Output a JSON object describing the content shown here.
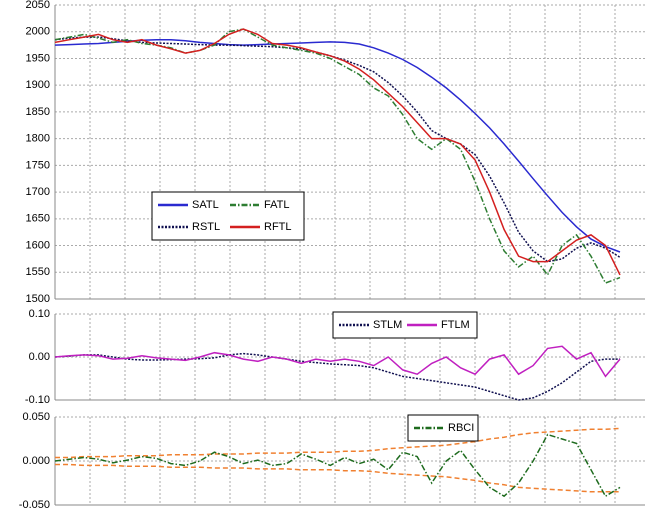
{
  "chart_data": [
    {
      "type": "line",
      "ylim": [
        1500,
        2050
      ],
      "yticks": [
        1500,
        1550,
        1600,
        1650,
        1700,
        1750,
        1800,
        1850,
        1900,
        1950,
        2000,
        2050
      ],
      "grid": true,
      "series": [
        {
          "name": "SATL",
          "color": "#2a2ad0",
          "line_style": "solid",
          "values": [
            1975,
            1976,
            1977,
            1978,
            1980,
            1982,
            1984,
            1985,
            1985,
            1983,
            1980,
            1978,
            1976,
            1975,
            1976,
            1977,
            1978,
            1979,
            1980,
            1981,
            1980,
            1977,
            1970,
            1960,
            1948,
            1933,
            1915,
            1895,
            1872,
            1847,
            1820,
            1790,
            1758,
            1725,
            1693,
            1662,
            1635,
            1612,
            1598,
            1588
          ]
        },
        {
          "name": "RSTL",
          "color": "#101050",
          "line_style": "dotted",
          "values": [
            1985,
            1988,
            1990,
            1990,
            1987,
            1983,
            1980,
            1979,
            1978,
            1977,
            1976,
            1975,
            1975,
            1974,
            1973,
            1972,
            1970,
            1968,
            1962,
            1955,
            1947,
            1937,
            1925,
            1905,
            1880,
            1850,
            1815,
            1800,
            1790,
            1770,
            1730,
            1680,
            1625,
            1590,
            1570,
            1575,
            1595,
            1605,
            1595,
            1578
          ]
        },
        {
          "name": "FATL",
          "color": "#2e7d32",
          "line_style": "dashdot",
          "values": [
            1985,
            1990,
            1995,
            1988,
            1980,
            1985,
            1978,
            1975,
            1970,
            1960,
            1965,
            1975,
            2000,
            2005,
            1990,
            1975,
            1970,
            1965,
            1960,
            1950,
            1935,
            1920,
            1895,
            1880,
            1845,
            1800,
            1780,
            1800,
            1780,
            1720,
            1650,
            1590,
            1560,
            1580,
            1545,
            1600,
            1620,
            1580,
            1530,
            1540
          ]
        },
        {
          "name": "RFTL",
          "color": "#d42020",
          "line_style": "solid",
          "values": [
            1980,
            1985,
            1990,
            1995,
            1985,
            1980,
            1985,
            1975,
            1968,
            1960,
            1965,
            1978,
            1995,
            2005,
            1995,
            1978,
            1975,
            1970,
            1962,
            1955,
            1945,
            1930,
            1910,
            1885,
            1860,
            1830,
            1800,
            1800,
            1790,
            1760,
            1700,
            1630,
            1580,
            1570,
            1570,
            1590,
            1610,
            1620,
            1600,
            1545
          ]
        }
      ]
    },
    {
      "type": "line",
      "ylim": [
        -0.1,
        0.1
      ],
      "yticks": [
        {
          "value": -0.1,
          "label": "-0.10"
        },
        {
          "value": 0,
          "label": "0.00"
        },
        {
          "value": 0.1,
          "label": "0.10"
        }
      ],
      "grid": true,
      "series": [
        {
          "name": "STLM",
          "color": "#101050",
          "line_style": "dotted",
          "values": [
            0,
            0.002,
            0.005,
            0.005,
            0,
            -0.005,
            -0.007,
            -0.007,
            -0.006,
            -0.005,
            -0.004,
            -0.002,
            0.005,
            0.008,
            0.005,
            0,
            -0.005,
            -0.01,
            -0.013,
            -0.016,
            -0.018,
            -0.02,
            -0.025,
            -0.035,
            -0.045,
            -0.05,
            -0.055,
            -0.06,
            -0.065,
            -0.07,
            -0.08,
            -0.09,
            -0.1,
            -0.095,
            -0.08,
            -0.06,
            -0.035,
            -0.01,
            -0.005,
            -0.005
          ]
        },
        {
          "name": "FTLM",
          "color": "#c020c0",
          "line_style": "solid",
          "values": [
            0,
            0.003,
            0.005,
            0.003,
            -0.005,
            -0.003,
            0.003,
            -0.002,
            -0.005,
            -0.008,
            0,
            0.01,
            0.005,
            -0.005,
            -0.01,
            0,
            -0.005,
            -0.015,
            -0.005,
            -0.01,
            -0.005,
            -0.01,
            -0.02,
            0,
            -0.03,
            -0.04,
            -0.015,
            0,
            -0.025,
            -0.04,
            -0.005,
            0.005,
            -0.04,
            -0.02,
            0.02,
            0.025,
            -0.005,
            0.01,
            -0.045,
            -0.005
          ]
        }
      ]
    },
    {
      "type": "line",
      "ylim": [
        -0.05,
        0.05
      ],
      "yticks": [
        {
          "value": -0.05,
          "label": "-0.050"
        },
        {
          "value": 0,
          "label": "0.000"
        },
        {
          "value": 0.05,
          "label": "0.050"
        }
      ],
      "grid": true,
      "series": [
        {
          "color": "#f08030",
          "line_style": "dashed",
          "values": [
            0.004,
            0.004,
            0.005,
            0.005,
            0.005,
            0.006,
            0.006,
            0.006,
            0.007,
            0.007,
            0.007,
            0.008,
            0.008,
            0.008,
            0.009,
            0.009,
            0.009,
            0.01,
            0.01,
            0.01,
            0.011,
            0.011,
            0.012,
            0.014,
            0.015,
            0.016,
            0.017,
            0.018,
            0.02,
            0.022,
            0.025,
            0.027,
            0.03,
            0.032,
            0.033,
            0.034,
            0.035,
            0.036,
            0.036,
            0.037
          ]
        },
        {
          "color": "#f08030",
          "line_style": "dashed",
          "values": [
            -0.004,
            -0.004,
            -0.005,
            -0.005,
            -0.005,
            -0.006,
            -0.006,
            -0.006,
            -0.007,
            -0.007,
            -0.007,
            -0.008,
            -0.008,
            -0.008,
            -0.009,
            -0.009,
            -0.009,
            -0.01,
            -0.01,
            -0.01,
            -0.011,
            -0.011,
            -0.012,
            -0.014,
            -0.015,
            -0.016,
            -0.017,
            -0.018,
            -0.02,
            -0.022,
            -0.025,
            -0.027,
            -0.03,
            -0.031,
            -0.032,
            -0.033,
            -0.034,
            -0.035,
            -0.035,
            -0.035
          ]
        },
        {
          "name": "RBCI",
          "color": "#1e6b1e",
          "line_style": "dashdot",
          "values": [
            0,
            0.002,
            0.004,
            0.002,
            -0.002,
            0.001,
            0.005,
            0.003,
            -0.003,
            -0.005,
            0,
            0.01,
            0.005,
            -0.003,
            0.001,
            -0.005,
            -0.003,
            0.008,
            0.002,
            -0.005,
            0.004,
            -0.003,
            0.002,
            -0.01,
            0.01,
            0.005,
            -0.025,
            0,
            0.012,
            -0.01,
            -0.03,
            -0.04,
            -0.025,
            0,
            0.03,
            0.025,
            0.02,
            -0.01,
            -0.04,
            -0.03
          ]
        }
      ]
    }
  ]
}
